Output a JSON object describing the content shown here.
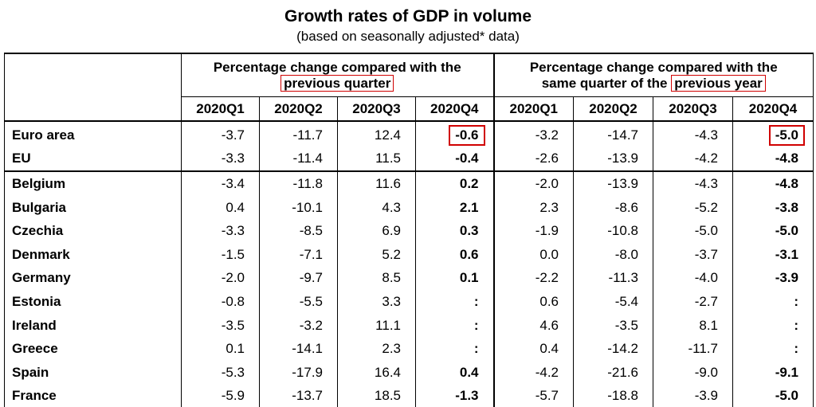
{
  "title": "Growth rates of GDP in volume",
  "subtitle": "(based on seasonally adjusted* data)",
  "colors": {
    "highlight_border": "#d00000",
    "rules": "#000000"
  },
  "header": {
    "group1_line1": "Percentage change compared with the",
    "group1_line2": "previous quarter",
    "group2_line1": "Percentage change compared with the",
    "group2_line2_prefix": "same quarter of the",
    "group2_line2_boxed": "previous year",
    "quarters": [
      "2020Q1",
      "2020Q2",
      "2020Q3",
      "2020Q4",
      "2020Q1",
      "2020Q2",
      "2020Q3",
      "2020Q4"
    ]
  },
  "rows": [
    {
      "name": "Euro area",
      "v": [
        "-3.7",
        "-11.7",
        "12.4",
        "-0.6",
        "-3.2",
        "-14.7",
        "-4.3",
        "-5.0"
      ]
    },
    {
      "name": "EU",
      "v": [
        "-3.3",
        "-11.4",
        "11.5",
        "-0.4",
        "-2.6",
        "-13.9",
        "-4.2",
        "-4.8"
      ]
    },
    {
      "name": "Belgium",
      "v": [
        "-3.4",
        "-11.8",
        "11.6",
        "0.2",
        "-2.0",
        "-13.9",
        "-4.3",
        "-4.8"
      ]
    },
    {
      "name": "Bulgaria",
      "v": [
        "0.4",
        "-10.1",
        "4.3",
        "2.1",
        "2.3",
        "-8.6",
        "-5.2",
        "-3.8"
      ]
    },
    {
      "name": "Czechia",
      "v": [
        "-3.3",
        "-8.5",
        "6.9",
        "0.3",
        "-1.9",
        "-10.8",
        "-5.0",
        "-5.0"
      ]
    },
    {
      "name": "Denmark",
      "v": [
        "-1.5",
        "-7.1",
        "5.2",
        "0.6",
        "0.0",
        "-8.0",
        "-3.7",
        "-3.1"
      ]
    },
    {
      "name": "Germany",
      "v": [
        "-2.0",
        "-9.7",
        "8.5",
        "0.1",
        "-2.2",
        "-11.3",
        "-4.0",
        "-3.9"
      ]
    },
    {
      "name": "Estonia",
      "v": [
        "-0.8",
        "-5.5",
        "3.3",
        ":",
        "0.6",
        "-5.4",
        "-2.7",
        ":"
      ]
    },
    {
      "name": "Ireland",
      "v": [
        "-3.5",
        "-3.2",
        "11.1",
        ":",
        "4.6",
        "-3.5",
        "8.1",
        ":"
      ]
    },
    {
      "name": "Greece",
      "v": [
        "0.1",
        "-14.1",
        "2.3",
        ":",
        "0.4",
        "-14.2",
        "-11.7",
        ":"
      ]
    },
    {
      "name": "Spain",
      "v": [
        "-5.3",
        "-17.9",
        "16.4",
        "0.4",
        "-4.2",
        "-21.6",
        "-9.0",
        "-9.1"
      ]
    },
    {
      "name": "France",
      "v": [
        "-5.9",
        "-13.7",
        "18.5",
        "-1.3",
        "-5.7",
        "-18.8",
        "-3.9",
        "-5.0"
      ]
    }
  ]
}
